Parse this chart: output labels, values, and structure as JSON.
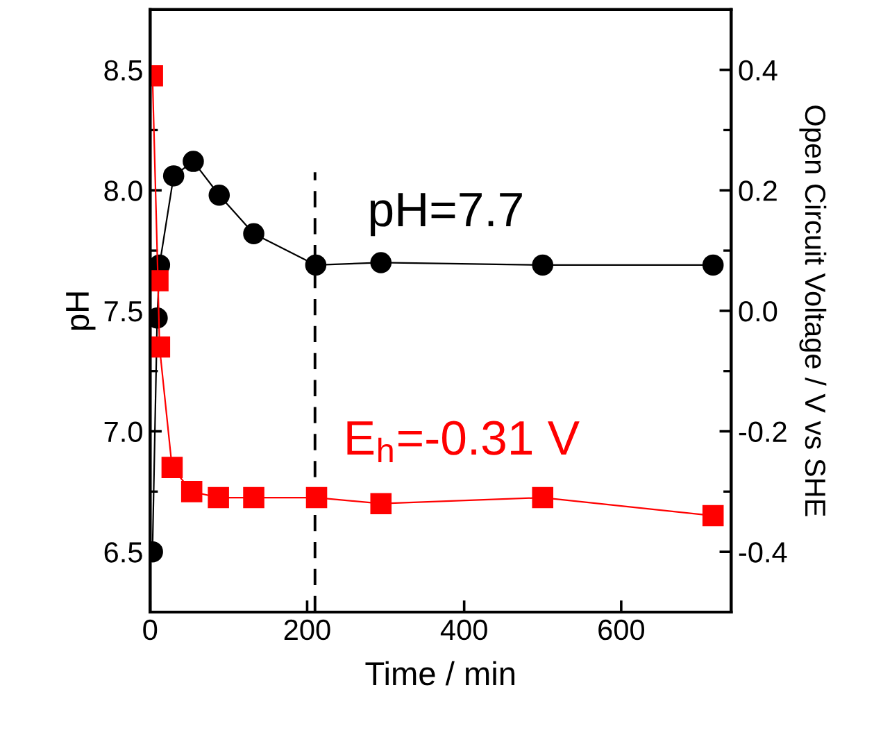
{
  "chart_data": {
    "type": "line",
    "xlabel": "Time / min",
    "ylabel": "pH",
    "y2label": "Open Circuit Voltage / V vs SHE",
    "xlim": [
      0,
      740
    ],
    "xticks": [
      0,
      200,
      400,
      600
    ],
    "ylim": [
      6.25,
      8.75
    ],
    "yticks": [
      6.5,
      {
        "value": 7,
        "label": "7.0"
      },
      7.5,
      {
        "value": 8,
        "label": "8.0"
      },
      8.5
    ],
    "y2lim": [
      -0.5,
      0.5
    ],
    "y2ticks": [
      -0.4,
      -0.2,
      {
        "value": 0,
        "label": "0.0"
      },
      0.2,
      0.4
    ],
    "grid": false,
    "legend": false,
    "series": [
      {
        "color": "#000000",
        "marker": "circle",
        "x": [
          3,
          9,
          12,
          30,
          55,
          88,
          132,
          211,
          294,
          500,
          717
        ],
        "values": [
          6.5,
          7.47,
          7.69,
          8.06,
          8.12,
          7.98,
          7.82,
          7.69,
          7.7,
          7.69,
          7.69
        ]
      },
      {
        "color": "#ff0000",
        "marker": "square",
        "axis": "y2",
        "x": [
          3,
          10,
          12,
          28,
          53,
          87,
          132,
          212,
          294,
          500,
          717
        ],
        "values": [
          0.39,
          0.05,
          -0.06,
          -0.26,
          -0.3,
          -0.31,
          -0.31,
          -0.31,
          -0.32,
          -0.31,
          -0.34
        ]
      }
    ],
    "ref_lines": [
      {
        "axis": "x",
        "value": 210,
        "line_style": "dashed",
        "color": "#000000"
      }
    ],
    "annotations": [
      "pH=7.7",
      "E$_{h}$=-0.31 V"
    ]
  }
}
